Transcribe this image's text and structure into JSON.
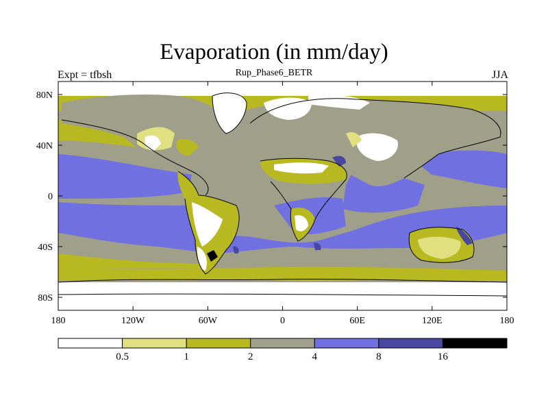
{
  "title": "Evaporation (in mm/day)",
  "left_string": "Expt = tfbsh",
  "center_string": "Rup_Phase6_BETR",
  "right_string": "JJA",
  "x_ticks": [
    {
      "lon": -180,
      "label": "180"
    },
    {
      "lon": -120,
      "label": "120W"
    },
    {
      "lon": -60,
      "label": "60W"
    },
    {
      "lon": 0,
      "label": "0"
    },
    {
      "lon": 60,
      "label": "60E"
    },
    {
      "lon": 120,
      "label": "120E"
    },
    {
      "lon": 180,
      "label": "180"
    }
  ],
  "y_ticks": [
    {
      "lat": 80,
      "label": "80N"
    },
    {
      "lat": 40,
      "label": "40N"
    },
    {
      "lat": 0,
      "label": "0"
    },
    {
      "lat": -40,
      "label": "40S"
    },
    {
      "lat": -80,
      "label": "80S"
    }
  ],
  "colorbar": {
    "colors": [
      "#ffffff",
      "#e0e080",
      "#b8b820",
      "#a0a08a",
      "#7070e0",
      "#4848a0",
      "#000000"
    ],
    "labels": [
      "0.5",
      "1",
      "2",
      "4",
      "8",
      "16"
    ]
  }
}
